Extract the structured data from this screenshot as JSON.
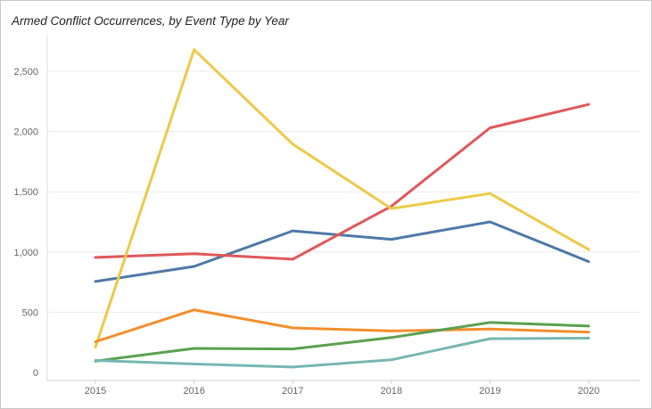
{
  "chart_data": {
    "type": "line",
    "title": "Armed Conflict Occurrences, by Event Type by Year",
    "xlabel": "",
    "ylabel": "",
    "x": [
      "2015",
      "2016",
      "2017",
      "2018",
      "2019",
      "2020"
    ],
    "ylim": [
      0,
      2800
    ],
    "yticks": [
      0,
      500,
      1000,
      1500,
      2000,
      2500
    ],
    "ytick_labels": [
      "0",
      "500",
      "1,000",
      "1,500",
      "2,000",
      "2,500"
    ],
    "grid": true,
    "legend": "none",
    "series": [
      {
        "color": "#4e79a7",
        "values": [
          755,
          880,
          1175,
          1105,
          1250,
          920
        ]
      },
      {
        "color": "#e15759",
        "values": [
          955,
          985,
          940,
          1380,
          2030,
          2225
        ]
      },
      {
        "color": "#edc948",
        "values": [
          210,
          2680,
          1895,
          1360,
          1485,
          1020
        ]
      },
      {
        "color": "#f28e2b",
        "values": [
          255,
          520,
          370,
          345,
          360,
          335
        ]
      },
      {
        "color": "#59a14f",
        "values": [
          95,
          200,
          195,
          290,
          415,
          385
        ]
      },
      {
        "color": "#76b7b2",
        "values": [
          100,
          70,
          45,
          105,
          280,
          285
        ]
      }
    ]
  }
}
